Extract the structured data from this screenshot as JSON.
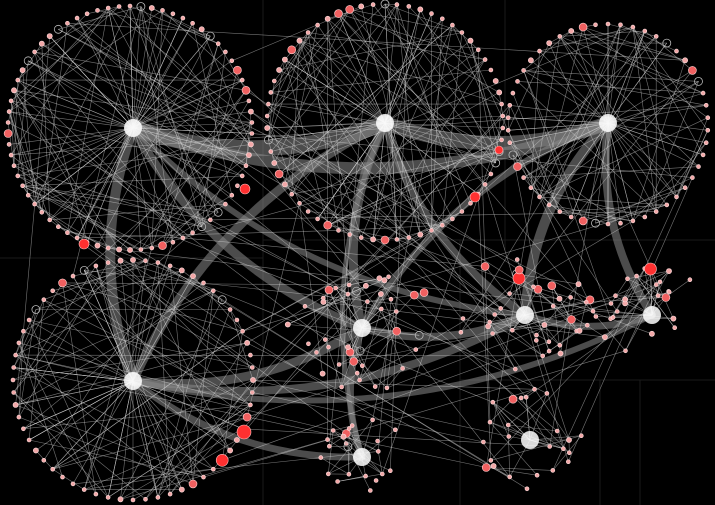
{
  "graph": {
    "type": "network-graph",
    "background_color": "#000000",
    "node_color": "#f2a8a8",
    "highlight_node_color": "#ff3030",
    "edge_color": "#d6d6d6",
    "group_edge_color": "#8a8a8a",
    "group_count": 9,
    "layout": "group-in-a-box"
  }
}
